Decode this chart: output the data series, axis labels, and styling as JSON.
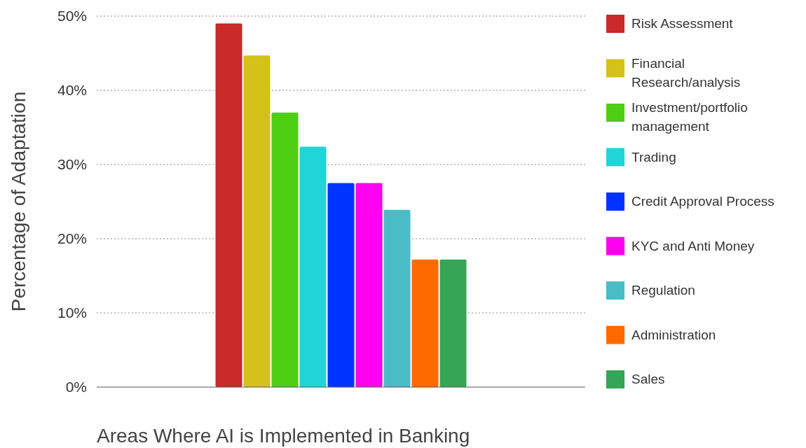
{
  "chart_data": {
    "type": "bar",
    "xlabel": "Areas Where AI is Implemented in Banking",
    "ylabel": "Percentage of Adaptation",
    "categories": [
      null
    ],
    "series": [
      {
        "name": "Risk Assessment",
        "color": "#c92a2a",
        "values": [
          49
        ]
      },
      {
        "name": "Financial Research/analysis",
        "color": "#d4c119",
        "values": [
          44.7
        ]
      },
      {
        "name": "Investment/portfolio management",
        "color": "#4fcf14",
        "values": [
          37
        ]
      },
      {
        "name": "Trading",
        "color": "#20d4d8",
        "values": [
          32.4
        ]
      },
      {
        "name": "Credit Approval Process",
        "color": "#0033ff",
        "values": [
          27.5
        ]
      },
      {
        "name": "KYC and Anti Money",
        "color": "#ff00f0",
        "values": [
          27.5
        ]
      },
      {
        "name": "Regulation",
        "color": "#4abcc6",
        "values": [
          23.9
        ]
      },
      {
        "name": "Administration",
        "color": "#ff6a00",
        "values": [
          17.2
        ]
      },
      {
        "name": "Sales",
        "color": "#36a556",
        "values": [
          17.2
        ]
      }
    ],
    "ylim": [
      0,
      50
    ],
    "yticks": [
      {
        "value": 0,
        "label": "0%"
      },
      {
        "value": 10,
        "label": "10%"
      },
      {
        "value": 20,
        "label": "20%"
      },
      {
        "value": 30,
        "label": "30%"
      },
      {
        "value": 40,
        "label": "40%"
      },
      {
        "value": 50,
        "label": "50%"
      }
    ],
    "grid": "y",
    "legend": "right"
  }
}
